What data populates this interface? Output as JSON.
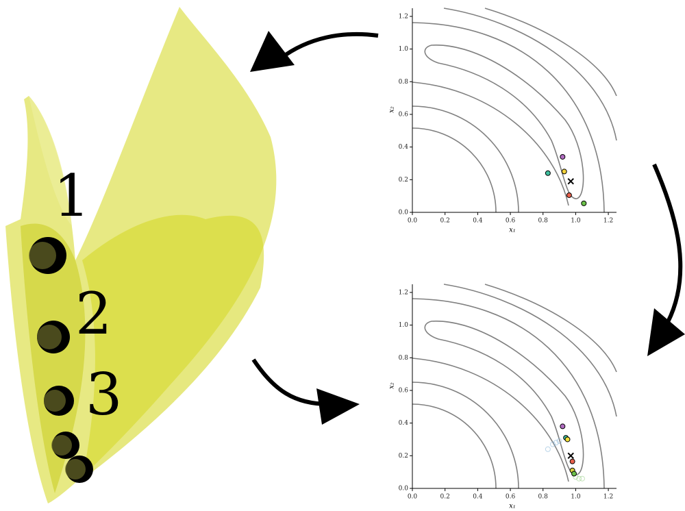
{
  "figure_labels": [
    "1",
    "2",
    "3"
  ],
  "chart_data": [
    {
      "type": "scatter",
      "x_label": "x₁",
      "y_label": "x₂",
      "xlim": [
        0,
        1.25
      ],
      "ylim": [
        0,
        1.25
      ],
      "xticks": [
        {
          "value": 0,
          "label": "0.0"
        },
        {
          "value": 0.2,
          "label": "0.2"
        },
        {
          "value": 0.4,
          "label": "0.4"
        },
        {
          "value": 0.6,
          "label": "0.6"
        },
        {
          "value": 0.8,
          "label": "0.8"
        },
        {
          "value": 1,
          "label": "1.0"
        },
        {
          "value": 1.2,
          "label": "1.2"
        }
      ],
      "yticks": [
        {
          "value": 0,
          "label": "0.0"
        },
        {
          "value": 0.2,
          "label": "0.2"
        },
        {
          "value": 0.4,
          "label": "0.4"
        },
        {
          "value": 0.6,
          "label": "0.6"
        },
        {
          "value": 0.8,
          "label": "0.8"
        },
        {
          "value": 1,
          "label": "1.0"
        },
        {
          "value": 1.2,
          "label": "1.2"
        }
      ],
      "series": [
        {
          "color": "#3fbf9f",
          "marker": "o",
          "x": [
            0.83
          ],
          "values": [
            0.24
          ]
        },
        {
          "color": "#b06bc0",
          "marker": "o",
          "x": [
            0.92
          ],
          "values": [
            0.34
          ]
        },
        {
          "color": "#f2d23c",
          "marker": "o",
          "x": [
            0.93
          ],
          "values": [
            0.25
          ]
        },
        {
          "color": "#000000",
          "marker": "x",
          "x": [
            0.97
          ],
          "values": [
            0.19
          ]
        },
        {
          "color": "#e8604c",
          "marker": "o",
          "x": [
            0.96
          ],
          "values": [
            0.105
          ]
        },
        {
          "color": "#6cc24a",
          "marker": "o",
          "x": [
            1.05
          ],
          "values": [
            0.055
          ]
        }
      ]
    },
    {
      "type": "scatter",
      "x_label": "x₁",
      "y_label": "x₂",
      "xlim": [
        0,
        1.25
      ],
      "ylim": [
        0,
        1.25
      ],
      "xticks": [
        {
          "value": 0,
          "label": "0.0"
        },
        {
          "value": 0.2,
          "label": "0.2"
        },
        {
          "value": 0.4,
          "label": "0.4"
        },
        {
          "value": 0.6,
          "label": "0.6"
        },
        {
          "value": 0.8,
          "label": "0.8"
        },
        {
          "value": 1,
          "label": "1.0"
        },
        {
          "value": 1.2,
          "label": "1.2"
        }
      ],
      "yticks": [
        {
          "value": 0,
          "label": "0.0"
        },
        {
          "value": 0.2,
          "label": "0.2"
        },
        {
          "value": 0.4,
          "label": "0.4"
        },
        {
          "value": 0.6,
          "label": "0.6"
        },
        {
          "value": 0.8,
          "label": "0.8"
        },
        {
          "value": 1,
          "label": "1.0"
        },
        {
          "value": 1.2,
          "label": "1.2"
        }
      ],
      "series": [
        {
          "color": "#8ab8d8",
          "marker": "o",
          "filled": false,
          "alpha": 0.6,
          "x": [
            0.83,
            0.86,
            0.88,
            0.9
          ],
          "values": [
            0.24,
            0.27,
            0.28,
            0.29
          ]
        },
        {
          "color": "#9bd08a",
          "marker": "o",
          "filled": false,
          "alpha": 0.6,
          "x": [
            1.0,
            1.02,
            1.04
          ],
          "values": [
            0.07,
            0.06,
            0.06
          ]
        },
        {
          "color": "#b06bc0",
          "marker": "o",
          "x": [
            0.92
          ],
          "values": [
            0.38
          ]
        },
        {
          "color": "#3fbf9f",
          "marker": "o",
          "x": [
            0.94
          ],
          "values": [
            0.31
          ]
        },
        {
          "color": "#f2e23c",
          "marker": "o",
          "x": [
            0.95
          ],
          "values": [
            0.3
          ]
        },
        {
          "color": "#000000",
          "marker": "x",
          "x": [
            0.97
          ],
          "values": [
            0.2
          ]
        },
        {
          "color": "#e8604c",
          "marker": "o",
          "x": [
            0.98
          ],
          "values": [
            0.165
          ]
        },
        {
          "color": "#d8d040",
          "marker": "o",
          "x": [
            0.98
          ],
          "values": [
            0.11
          ]
        },
        {
          "color": "#6cc24a",
          "marker": "o",
          "x": [
            0.99
          ],
          "values": [
            0.09
          ]
        }
      ]
    }
  ]
}
